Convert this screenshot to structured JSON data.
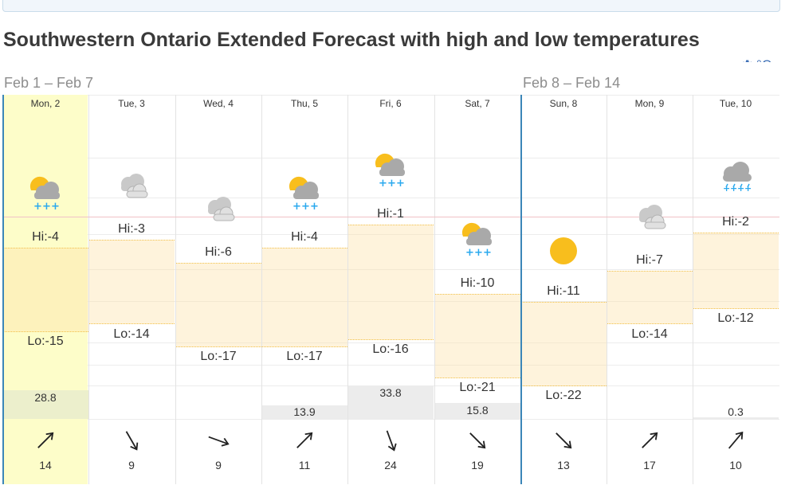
{
  "page": {
    "title": "Southwestern Ontario Extended Forecast with high and low temperatures",
    "unit_label": "°C"
  },
  "weeks": [
    "Feb 1 – Feb 7",
    "Feb 8 – Feb 14"
  ],
  "days": [
    {
      "label": "Mon, 2",
      "hi": "Hi:-4",
      "lo": "Lo:-15",
      "precip": "28.8",
      "wind": "14",
      "icon": "sun-cloud-snow-icon"
    },
    {
      "label": "Tue, 3",
      "hi": "Hi:-3",
      "lo": "Lo:-14",
      "precip": "",
      "wind": "9",
      "icon": "cloudy-icon"
    },
    {
      "label": "Wed, 4",
      "hi": "Hi:-6",
      "lo": "Lo:-17",
      "precip": "",
      "wind": "9",
      "icon": "cloudy-icon"
    },
    {
      "label": "Thu, 5",
      "hi": "Hi:-4",
      "lo": "Lo:-17",
      "precip": "13.9",
      "wind": "11",
      "icon": "sun-cloud-snow-icon"
    },
    {
      "label": "Fri, 6",
      "hi": "Hi:-1",
      "lo": "Lo:-16",
      "precip": "33.8",
      "wind": "24",
      "icon": "sun-cloud-snow-icon"
    },
    {
      "label": "Sat, 7",
      "hi": "Hi:-10",
      "lo": "Lo:-21",
      "precip": "15.8",
      "wind": "19",
      "icon": "sun-cloud-snow-icon"
    },
    {
      "label": "Sun, 8",
      "hi": "Hi:-11",
      "lo": "Lo:-22",
      "precip": "",
      "wind": "13",
      "icon": "sun-icon"
    },
    {
      "label": "Mon, 9",
      "hi": "Hi:-7",
      "lo": "Lo:-14",
      "precip": "",
      "wind": "17",
      "icon": "cloudy-icon"
    },
    {
      "label": "Tue, 10",
      "hi": "Hi:-2",
      "lo": "Lo:-12",
      "precip": "0.3",
      "wind": "10",
      "icon": "cloud-heavy-snow-icon"
    }
  ],
  "chart_data": {
    "type": "bar",
    "categories": [
      "Mon, 2",
      "Tue, 3",
      "Wed, 4",
      "Thu, 5",
      "Fri, 6",
      "Sat, 7",
      "Sun, 8",
      "Mon, 9",
      "Tue, 10"
    ],
    "series": [
      {
        "name": "Hi",
        "values": [
          -4,
          -3,
          -6,
          -4,
          -1,
          -10,
          -11,
          -7,
          -2
        ]
      },
      {
        "name": "Lo",
        "values": [
          -15,
          -14,
          -17,
          -17,
          -16,
          -21,
          -22,
          -14,
          -12
        ]
      }
    ],
    "precipitation": [
      28.8,
      null,
      null,
      13.9,
      33.8,
      15.8,
      null,
      null,
      0.3
    ],
    "wind_speed": [
      14,
      9,
      9,
      11,
      24,
      19,
      13,
      17,
      10
    ],
    "wind_direction_deg": [
      45,
      150,
      110,
      45,
      160,
      135,
      135,
      45,
      40
    ]
  },
  "colors": {
    "accent": "#3b86b8",
    "band_fill": "#fde3ac",
    "band_border": "#f2c14a",
    "highlight": "#fdfdc9",
    "sun": "#f8be1d",
    "snow": "#2aa9ee",
    "cloud": "#b0b0b0",
    "gear": "#3d6fb6",
    "bottom_bar": "#157f7f"
  }
}
